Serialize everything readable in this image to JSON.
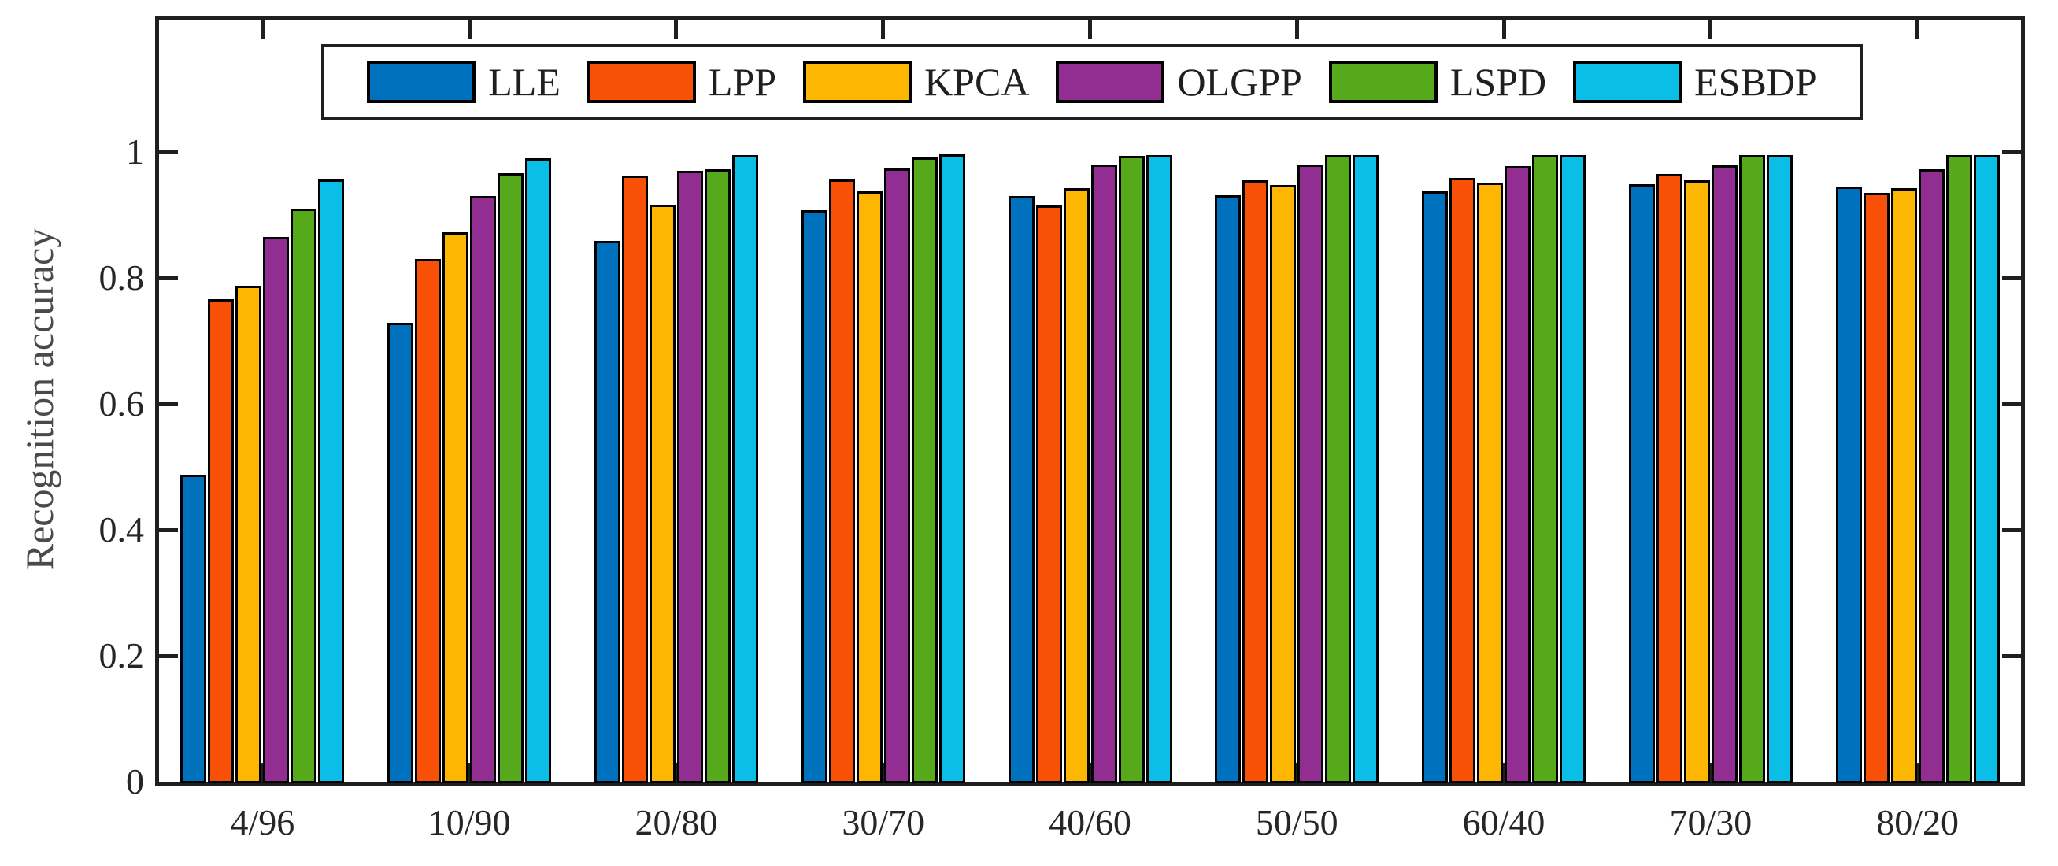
{
  "figure": {
    "ylabel": "Recognition accuracy",
    "background_color": "#ffffff",
    "frame_color": "#1f1f1f",
    "bar_edge_color": "#000000",
    "y_tick_labels": [
      "0",
      "0.2",
      "0.4",
      "0.6",
      "0.8",
      "1"
    ]
  },
  "chart_data": {
    "type": "bar",
    "title": "",
    "xlabel": "",
    "ylabel": "Recognition accuracy",
    "categories": [
      "4/96",
      "10/90",
      "20/80",
      "30/70",
      "40/60",
      "50/50",
      "60/40",
      "70/30",
      "80/20"
    ],
    "series": [
      {
        "name": "LLE",
        "color": "#0072BD",
        "values": [
          0.49,
          0.731,
          0.861,
          0.91,
          0.933,
          0.934,
          0.94,
          0.951,
          0.948
        ]
      },
      {
        "name": "LPP",
        "color": "#F95008",
        "values": [
          0.769,
          0.833,
          0.965,
          0.959,
          0.918,
          0.958,
          0.961,
          0.967,
          0.938
        ]
      },
      {
        "name": "KPCA",
        "color": "#FDB702",
        "values": [
          0.79,
          0.875,
          0.919,
          0.94,
          0.945,
          0.95,
          0.954,
          0.957,
          0.945
        ]
      },
      {
        "name": "OLGPP",
        "color": "#922D92",
        "values": [
          0.868,
          0.933,
          0.973,
          0.976,
          0.983,
          0.983,
          0.98,
          0.981,
          0.975
        ]
      },
      {
        "name": "LSPD",
        "color": "#57A91C",
        "values": [
          0.913,
          0.969,
          0.975,
          0.994,
          0.996,
          0.997,
          0.998,
          0.998,
          0.998
        ]
      },
      {
        "name": "ESBDP",
        "color": "#0ABEE8",
        "values": [
          0.959,
          0.993,
          0.998,
          0.999,
          0.998,
          0.998,
          0.998,
          0.997,
          0.997
        ]
      }
    ],
    "yticks": [
      0,
      0.2,
      0.4,
      0.6,
      0.8,
      1
    ],
    "ylim": [
      0,
      1.216
    ],
    "grid": false,
    "tick_direction": "in",
    "box": true,
    "legend_position": "top-center-inside"
  }
}
